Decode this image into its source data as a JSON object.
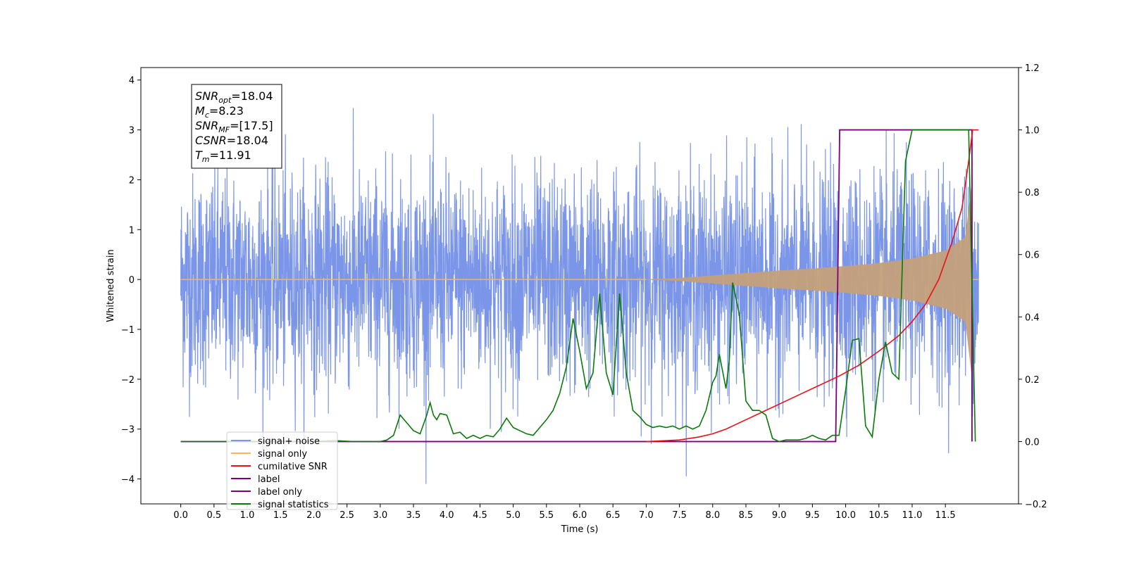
{
  "chart_data": {
    "type": "line",
    "xlabel": "Time (s)",
    "ylabel": "Whitened strain",
    "xlim": [
      -0.6,
      12.6
    ],
    "ylim": [
      -4.5,
      4.25
    ],
    "y2lim": [
      -0.2,
      1.2
    ],
    "x_ticks": [
      "0.0",
      "0.5",
      "1.0",
      "1.5",
      "2.0",
      "2.5",
      "3.0",
      "3.5",
      "4.0",
      "4.5",
      "5.0",
      "5.5",
      "6.0",
      "6.5",
      "7.0",
      "7.5",
      "8.0",
      "8.5",
      "9.0",
      "9.5",
      "10.0",
      "10.5",
      "11.0",
      "11.5"
    ],
    "y_ticks": [
      "4",
      "3",
      "2",
      "1",
      "0",
      "−1",
      "−2",
      "−3",
      "−4"
    ],
    "y2_ticks": [
      "1.2",
      "1.0",
      "0.8",
      "0.6",
      "0.4",
      "0.2",
      "0.0",
      "−0.2"
    ],
    "annotation": {
      "lines": [
        {
          "base": "SNR",
          "sub": "opt",
          "value": "=18.04"
        },
        {
          "base": "M",
          "sub": "c",
          "value": "=8.23"
        },
        {
          "base": "SNR",
          "sub": "MF",
          "value": "=[17.5]"
        },
        {
          "base": "CSNR",
          "sub": "",
          "value": "=18.04"
        },
        {
          "base": "T",
          "sub": "m",
          "value": "=11.91"
        }
      ]
    },
    "legend": {
      "placement": "lower-left",
      "entries": [
        {
          "label": "signal+ noise",
          "color": "#7b96e8"
        },
        {
          "label": "signal only",
          "color": "#f5b55a"
        },
        {
          "label": "cumilative SNR",
          "color": "#e8121a"
        },
        {
          "label": "label",
          "color": "#7b007b"
        },
        {
          "label": "label only",
          "color": "#7b007b"
        },
        {
          "label": "signal statistics",
          "color": "#0a7a0a"
        }
      ]
    },
    "series": [
      {
        "name": "signal+ noise",
        "axis": "left",
        "color": "#7b96e8",
        "description_values": {
          "x_start": 0.0,
          "x_end": 12.0,
          "noise_sigma": 1.0,
          "max": 3.85,
          "min": -4.1
        }
      },
      {
        "name": "signal only",
        "axis": "left",
        "color": "#f5b55a",
        "envelope": {
          "x": [
            0.0,
            7.0,
            7.5,
            8.0,
            8.5,
            9.0,
            9.5,
            10.0,
            10.5,
            11.0,
            11.5,
            11.8,
            11.91
          ],
          "amp": [
            0.0,
            0.005,
            0.03,
            0.08,
            0.13,
            0.18,
            0.22,
            0.27,
            0.33,
            0.42,
            0.58,
            0.85,
            2.1
          ]
        }
      },
      {
        "name": "cumilative SNR",
        "axis": "right",
        "color": "#e8121a",
        "x": [
          7.0,
          7.5,
          7.8,
          8.0,
          8.2,
          8.5,
          8.8,
          9.0,
          9.5,
          9.9,
          10.2,
          10.5,
          10.8,
          11.0,
          11.2,
          11.4,
          11.6,
          11.75,
          11.85,
          11.91,
          12.0
        ],
        "y": [
          0.0,
          0.005,
          0.015,
          0.025,
          0.04,
          0.07,
          0.1,
          0.12,
          0.17,
          0.21,
          0.245,
          0.29,
          0.34,
          0.385,
          0.44,
          0.52,
          0.64,
          0.75,
          0.9,
          1.0,
          1.0
        ]
      },
      {
        "name": "label",
        "axis": "right",
        "color": "#7b007b",
        "x": [
          0.0,
          9.85,
          9.91,
          11.9,
          11.9
        ],
        "y": [
          0.0,
          0.0,
          1.0,
          1.0,
          0.0
        ]
      },
      {
        "name": "signal statistics",
        "axis": "right",
        "color": "#0a7a0a",
        "x": [
          0.0,
          2.0,
          2.3,
          2.6,
          3.0,
          3.1,
          3.2,
          3.3,
          3.4,
          3.5,
          3.6,
          3.7,
          3.75,
          3.8,
          3.85,
          3.9,
          4.0,
          4.1,
          4.2,
          4.3,
          4.4,
          4.5,
          4.6,
          4.7,
          4.8,
          4.9,
          5.0,
          5.1,
          5.2,
          5.3,
          5.4,
          5.5,
          5.6,
          5.7,
          5.8,
          5.9,
          6.0,
          6.1,
          6.2,
          6.3,
          6.4,
          6.5,
          6.6,
          6.7,
          6.8,
          6.9,
          7.0,
          7.1,
          7.2,
          7.3,
          7.4,
          7.5,
          7.6,
          7.7,
          7.8,
          7.9,
          8.0,
          8.05,
          8.1,
          8.2,
          8.25,
          8.3,
          8.4,
          8.5,
          8.6,
          8.7,
          8.8,
          8.9,
          9.0,
          9.1,
          9.2,
          9.3,
          9.4,
          9.5,
          9.6,
          9.7,
          9.8,
          9.9,
          10.0,
          10.1,
          10.2,
          10.3,
          10.4,
          10.5,
          10.6,
          10.7,
          10.8,
          10.9,
          11.0,
          11.1,
          11.5,
          11.85,
          11.95
        ],
        "y": [
          0.0,
          0.0,
          0.003,
          0.0,
          0.0,
          0.005,
          0.02,
          0.085,
          0.06,
          0.035,
          0.025,
          0.085,
          0.125,
          0.085,
          0.07,
          0.09,
          0.085,
          0.025,
          0.03,
          0.01,
          0.02,
          0.01,
          0.02,
          0.015,
          0.04,
          0.075,
          0.045,
          0.035,
          0.025,
          0.02,
          0.045,
          0.07,
          0.1,
          0.155,
          0.24,
          0.395,
          0.29,
          0.17,
          0.22,
          0.475,
          0.22,
          0.15,
          0.475,
          0.22,
          0.1,
          0.08,
          0.055,
          0.045,
          0.05,
          0.045,
          0.05,
          0.04,
          0.05,
          0.04,
          0.05,
          0.1,
          0.19,
          0.21,
          0.28,
          0.17,
          0.26,
          0.51,
          0.41,
          0.13,
          0.1,
          0.1,
          0.085,
          0.01,
          0.0,
          0.005,
          0.005,
          0.005,
          0.01,
          0.02,
          0.01,
          0.005,
          0.02,
          0.02,
          0.165,
          0.325,
          0.33,
          0.05,
          0.015,
          0.2,
          0.32,
          0.22,
          0.2,
          0.9,
          1.0,
          1.0,
          1.0,
          1.0,
          0.0
        ]
      }
    ]
  }
}
